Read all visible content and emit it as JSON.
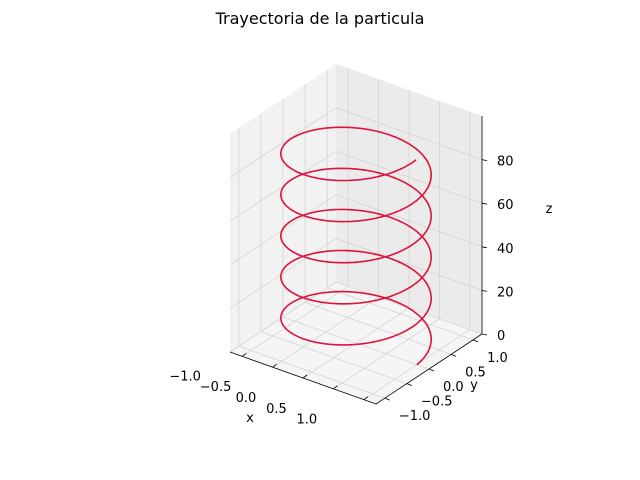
{
  "chart_data": {
    "type": "line",
    "projection": "3d",
    "title": "Trayectoria de la particula",
    "xlabel": "x",
    "ylabel": "y",
    "zlabel": "z",
    "xlim": [
      -1.2,
      1.2
    ],
    "ylim": [
      -1.2,
      1.2
    ],
    "zlim": [
      0,
      100
    ],
    "xticks": [
      "−1.0",
      "−0.5",
      "0.0",
      "0.5",
      "1.0"
    ],
    "yticks": [
      "−1.0",
      "−0.5",
      "0.0",
      "0.5",
      "1.0"
    ],
    "zticks": [
      "0",
      "20",
      "40",
      "60",
      "80"
    ],
    "grid": true,
    "series": [
      {
        "color": "#dc143c",
        "x_function": "cos(t)",
        "y_function": "sin(t)",
        "z_function": "3t",
        "t_range": [
          0,
          31.4
        ]
      }
    ]
  }
}
